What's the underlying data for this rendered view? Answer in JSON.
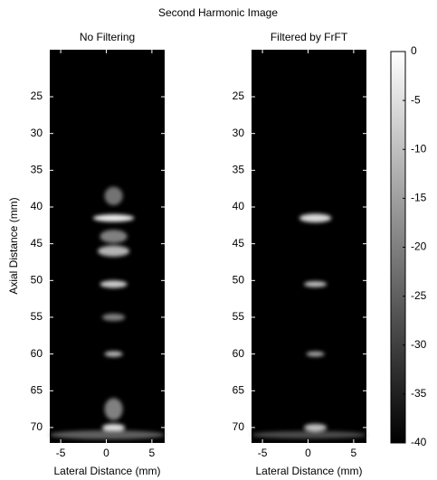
{
  "title": "Second Harmonic Image",
  "chart_data": [
    {
      "type": "heatmap",
      "title": "No Filtering",
      "xlabel": "Lateral Distance (mm)",
      "ylabel": "Axial Distance (mm)",
      "xlim": [
        -6.2,
        6.4
      ],
      "ylim": [
        18.6,
        72.1
      ],
      "xticks": [
        -5,
        0,
        5
      ],
      "yticks": [
        25,
        30,
        35,
        40,
        45,
        50,
        55,
        60,
        65,
        70
      ],
      "spots": [
        {
          "x": 0.8,
          "y": 38.5,
          "w": 2.0,
          "h": 2.5,
          "value": -22
        },
        {
          "x": 0.8,
          "y": 41.5,
          "w": 4.5,
          "h": 1.0,
          "value": -3
        },
        {
          "x": 0.8,
          "y": 44,
          "w": 3.0,
          "h": 1.8,
          "value": -20
        },
        {
          "x": 0.8,
          "y": 46,
          "w": 3.5,
          "h": 1.5,
          "value": -12
        },
        {
          "x": 0.8,
          "y": 50.5,
          "w": 3.0,
          "h": 1.0,
          "value": -8
        },
        {
          "x": 0.8,
          "y": 55,
          "w": 2.5,
          "h": 1.0,
          "value": -20
        },
        {
          "x": 0.8,
          "y": 60,
          "w": 2.0,
          "h": 0.8,
          "value": -12
        },
        {
          "x": 0.8,
          "y": 67.5,
          "w": 2.0,
          "h": 3.0,
          "value": -20
        },
        {
          "x": 0.8,
          "y": 70,
          "w": 2.5,
          "h": 1.0,
          "value": -5
        },
        {
          "x": 0.1,
          "y": 71,
          "w": 12.6,
          "h": 1.2,
          "value": -25
        }
      ]
    },
    {
      "type": "heatmap",
      "title": "Filtered by FrFT",
      "xlabel": "Lateral Distance (mm)",
      "xlim": [
        -6.2,
        6.4
      ],
      "ylim": [
        18.6,
        72.1
      ],
      "xticks": [
        -5,
        0,
        5
      ],
      "yticks": [
        25,
        30,
        35,
        40,
        45,
        50,
        55,
        60,
        65,
        70
      ],
      "spots": [
        {
          "x": 0.8,
          "y": 41.5,
          "w": 3.5,
          "h": 1.2,
          "value": -6
        },
        {
          "x": 0.8,
          "y": 50.5,
          "w": 2.5,
          "h": 0.8,
          "value": -10
        },
        {
          "x": 0.8,
          "y": 60,
          "w": 2.0,
          "h": 0.7,
          "value": -14
        },
        {
          "x": 0.8,
          "y": 70,
          "w": 2.5,
          "h": 1.0,
          "value": -10
        },
        {
          "x": 0.1,
          "y": 71,
          "w": 12.6,
          "h": 1.0,
          "value": -28
        }
      ]
    },
    {
      "type": "colorbar",
      "lim": [
        -40,
        0
      ],
      "ticks": [
        0,
        -5,
        -10,
        -15,
        -20,
        -25,
        -30,
        -35,
        -40
      ]
    }
  ]
}
